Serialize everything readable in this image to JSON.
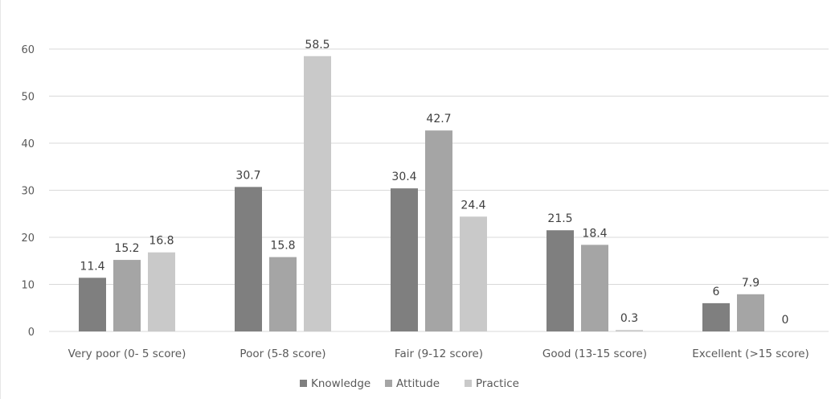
{
  "chart_data": {
    "type": "bar",
    "title": "",
    "xlabel": "",
    "ylabel": "",
    "ylim": [
      0,
      60
    ],
    "yticks": [
      0,
      10,
      20,
      30,
      40,
      50,
      60
    ],
    "grid": true,
    "legend_position": "bottom",
    "categories": [
      "Very poor (0- 5 score)",
      "Poor (5-8 score)",
      "Fair (9-12 score)",
      "Good (13-15 score)",
      "Excellent (>15 score)"
    ],
    "series": [
      {
        "name": "Knowledge",
        "color": "#7f7f7f",
        "values": [
          11.4,
          30.7,
          30.4,
          21.5,
          6
        ]
      },
      {
        "name": "Attitude",
        "color": "#a5a5a5",
        "values": [
          15.2,
          15.8,
          42.7,
          18.4,
          7.9
        ]
      },
      {
        "name": "Practice",
        "color": "#c9c9c9",
        "values": [
          16.8,
          58.5,
          24.4,
          0.3,
          0
        ]
      }
    ]
  }
}
